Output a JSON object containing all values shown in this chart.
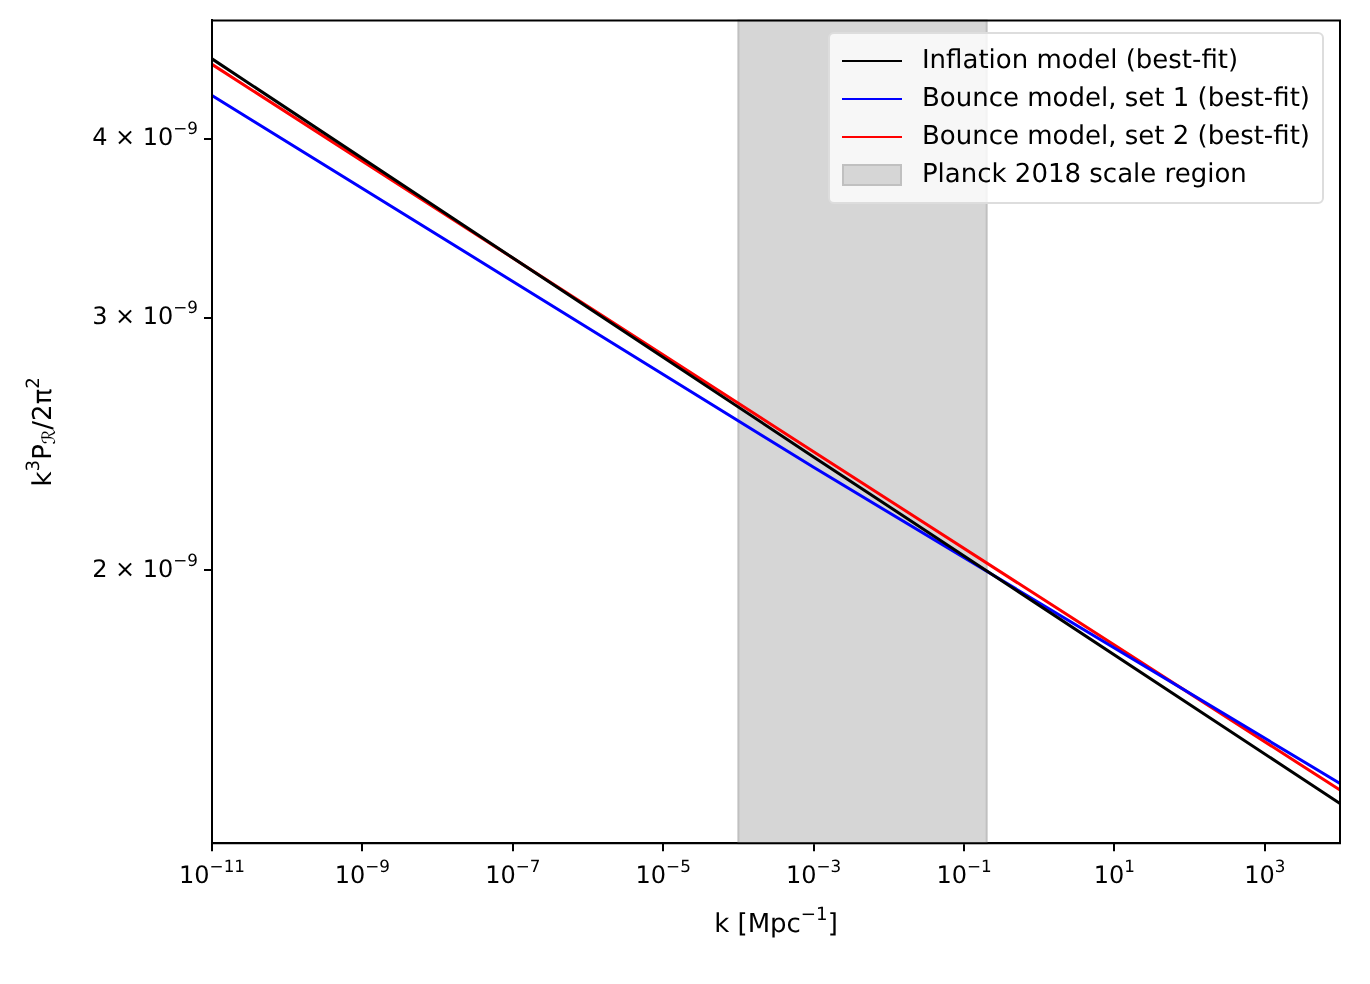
{
  "chart_data": {
    "type": "line",
    "xlabel": "k [Mpc$^{−1}$]",
    "ylabel": "k$^{3}$P$_{ℛ}$/2π$^{2}$",
    "log": "xy",
    "grid": false,
    "legend": "top right",
    "marker": "none",
    "line_style": "solid",
    "xlim": [
      1e-11,
      10000.0
    ],
    "ylim": [
      1.29e-09,
      4.84e-09
    ],
    "xticks": [
      {
        "value": 1e-11,
        "label": "10$^{−11}$"
      },
      {
        "value": 1e-09,
        "label": "10$^{−9}$"
      },
      {
        "value": 1e-07,
        "label": "10$^{−7}$"
      },
      {
        "value": 1e-05,
        "label": "10$^{−5}$"
      },
      {
        "value": 0.001,
        "label": "10$^{−3}$"
      },
      {
        "value": 0.1,
        "label": "10$^{−1}$"
      },
      {
        "value": 10,
        "label": "10$^{1}$"
      },
      {
        "value": 1000,
        "label": "10$^{3}$"
      }
    ],
    "yticks": [
      {
        "value": 2e-09,
        "label": "2 × 10$^{−9}$"
      },
      {
        "value": 3e-09,
        "label": "3 × 10$^{−9}$"
      },
      {
        "value": 4e-09,
        "label": "4 × 10$^{−9}$"
      }
    ],
    "series": [
      {
        "name": "Inflation model (best-fit)",
        "color": "#000000",
        "x": [
          1e-11,
          0.001,
          10000.0
        ],
        "values": [
          4.55e-09,
          2.4e-09,
          1.375e-09
        ]
      },
      {
        "name": "Bounce model, set 1 (best-fit)",
        "color": "#0000ff",
        "x": [
          1e-11,
          0.001,
          10000.0
        ],
        "values": [
          4.29e-09,
          2.36e-09,
          1.42e-09
        ]
      },
      {
        "name": "Bounce model, set 2 (best-fit)",
        "color": "#ff0000",
        "x": [
          1e-11,
          0.001,
          10000.0
        ],
        "values": [
          4.51e-09,
          2.42e-09,
          1.405e-09
        ]
      }
    ],
    "bands": [
      {
        "axis": "x",
        "from": 0.0001,
        "to": 0.2,
        "label": "Planck 2018 scale region",
        "color": "#d6d6d6"
      }
    ]
  }
}
